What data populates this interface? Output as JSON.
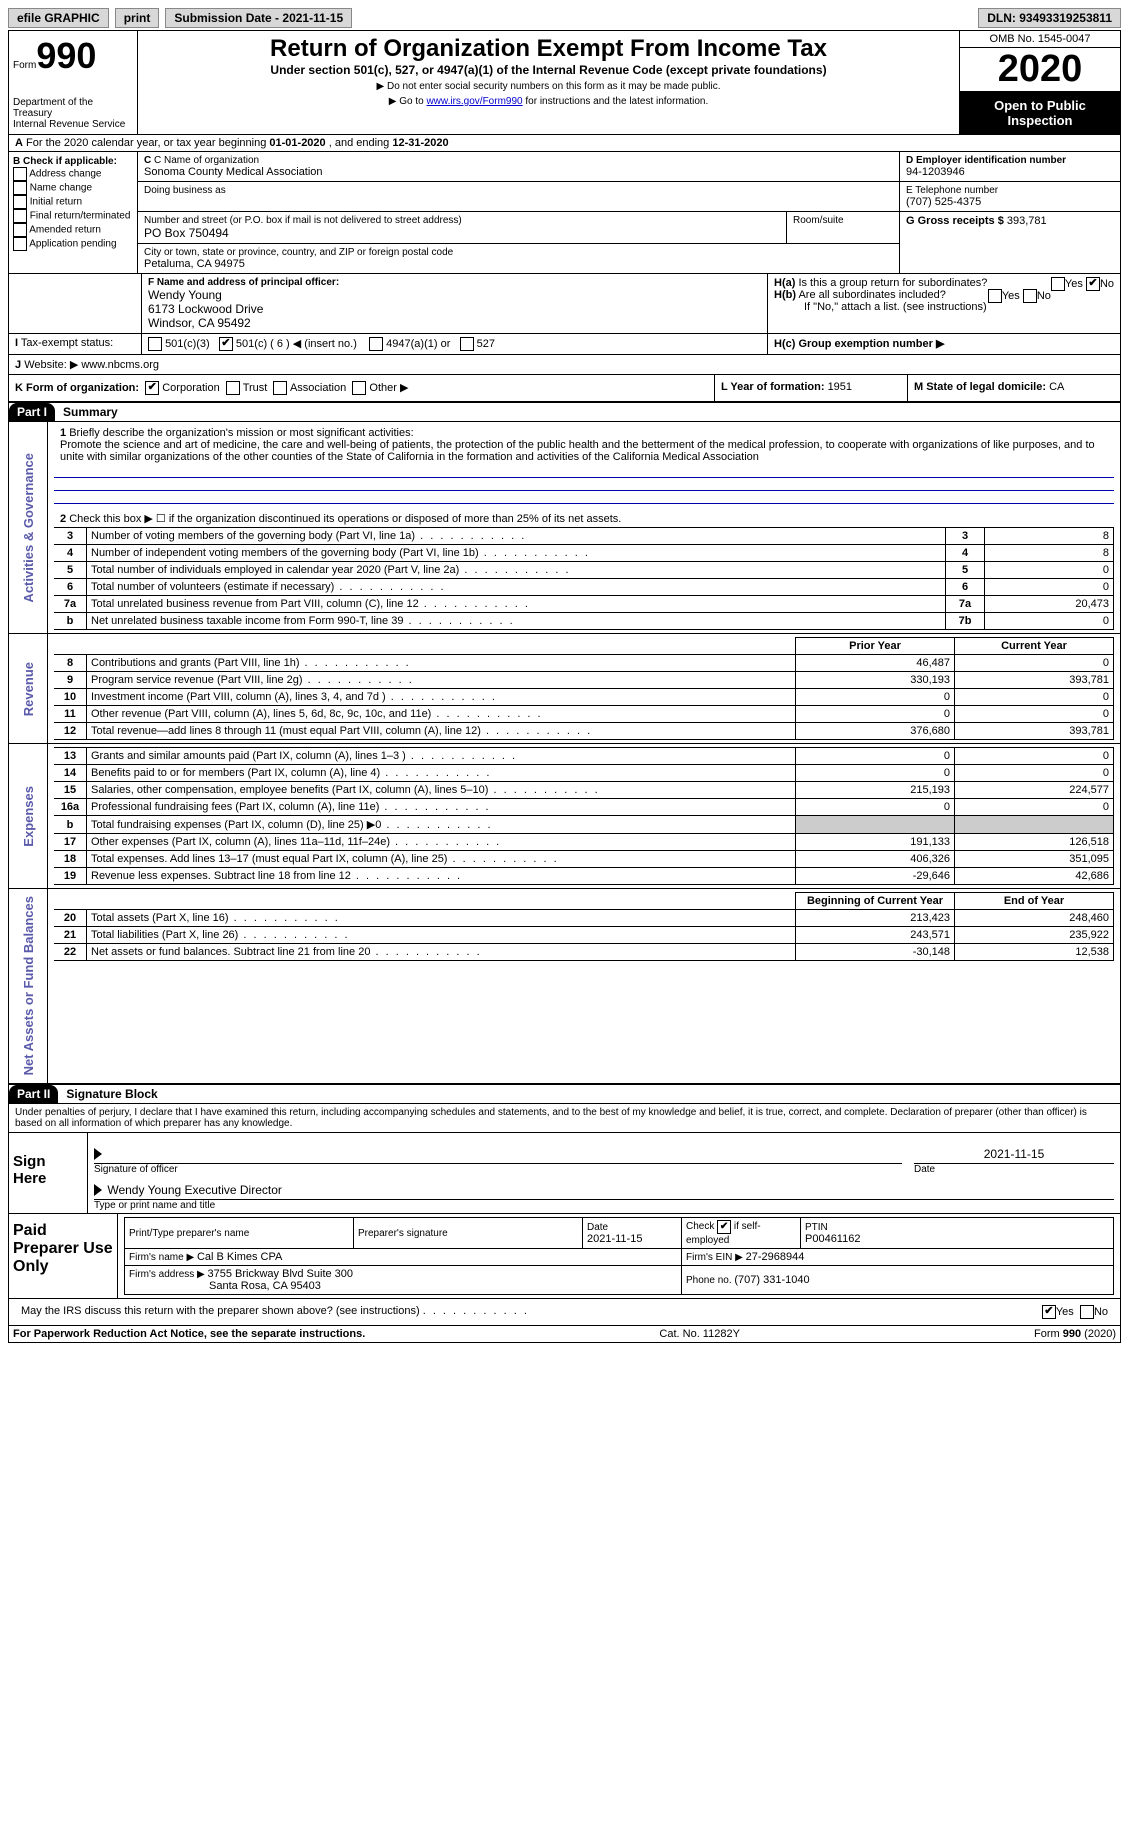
{
  "topbar": {
    "efile": "efile GRAPHIC",
    "print": "print",
    "subdate_label": "Submission Date - ",
    "subdate": "2021-11-15",
    "dln_label": "DLN: ",
    "dln": "93493319253811"
  },
  "header": {
    "form_label": "Form",
    "form_no": "990",
    "dept1": "Department of the Treasury",
    "dept2": "Internal Revenue Service",
    "title": "Return of Organization Exempt From Income Tax",
    "subtitle": "Under section 501(c), 527, or 4947(a)(1) of the Internal Revenue Code (except private foundations)",
    "note1": "Do not enter social security numbers on this form as it may be made public.",
    "note2_pre": "Go to ",
    "note2_link": "www.irs.gov/Form990",
    "note2_post": " for instructions and the latest information.",
    "omb": "OMB No. 1545-0047",
    "year": "2020",
    "open": "Open to Public Inspection"
  },
  "periodA": {
    "text_pre": "For the 2020 calendar year, or tax year beginning ",
    "begin": "01-01-2020",
    "mid": " , and ending ",
    "end": "12-31-2020"
  },
  "boxB": {
    "title": "B Check if applicable:",
    "opts": [
      "Address change",
      "Name change",
      "Initial return",
      "Final return/terminated",
      "Amended return",
      "Application pending"
    ]
  },
  "boxC": {
    "name_label": "C Name of organization",
    "name": "Sonoma County Medical Association",
    "dba_label": "Doing business as",
    "addr_label": "Number and street (or P.O. box if mail is not delivered to street address)",
    "room_label": "Room/suite",
    "addr": "PO Box 750494",
    "city_label": "City or town, state or province, country, and ZIP or foreign postal code",
    "city": "Petaluma, CA  94975"
  },
  "boxD": {
    "label": "D Employer identification number",
    "ein": "94-1203946"
  },
  "boxE": {
    "label": "E Telephone number",
    "phone": "(707) 525-4375"
  },
  "boxG": {
    "label": "G Gross receipts $ ",
    "val": "393,781"
  },
  "boxF": {
    "label": "F  Name and address of principal officer:",
    "name": "Wendy Young",
    "addr1": "6173 Lockwood Drive",
    "addr2": "Windsor, CA  95492"
  },
  "boxH": {
    "a_label": "H(a)  Is this a group return for subordinates?",
    "b_label": "H(b)  Are all subordinates included?",
    "b_note": "If \"No,\" attach a list. (see instructions)",
    "c_label": "H(c)  Group exemption number ▶",
    "yes": "Yes",
    "no": "No"
  },
  "boxI": {
    "label": "Tax-exempt status:",
    "o1": "501(c)(3)",
    "o2": "501(c) ( 6 ) ◀ (insert no.)",
    "o3": "4947(a)(1) or",
    "o4": "527"
  },
  "boxJ": {
    "label": "Website: ▶ ",
    "val": "www.nbcms.org"
  },
  "boxK": {
    "label": "K Form of organization:",
    "o1": "Corporation",
    "o2": "Trust",
    "o3": "Association",
    "o4": "Other ▶"
  },
  "boxL": {
    "label": "L Year of formation: ",
    "val": "1951"
  },
  "boxM": {
    "label": "M State of legal domicile: ",
    "val": "CA"
  },
  "part1": {
    "part": "Part I",
    "title": "Summary",
    "line1_label": "Briefly describe the organization's mission or most significant activities:",
    "mission": "Promote the science and art of medicine, the care and well-being of patients, the protection of the public health and the betterment of the medical profession, to cooperate with organizations of like purposes, and to unite with similar organizations of the other counties of the State of California in the formation and activities of the California Medical Association",
    "line2": "Check this box ▶ ☐ if the organization discontinued its operations or disposed of more than 25% of its net assets.",
    "side_ag": "Activities & Governance",
    "side_rev": "Revenue",
    "side_exp": "Expenses",
    "side_net": "Net Assets or Fund Balances",
    "prior_hdr": "Prior Year",
    "current_hdr": "Current Year",
    "boy_hdr": "Beginning of Current Year",
    "eoy_hdr": "End of Year",
    "ag_rows": [
      {
        "n": "3",
        "label": "Number of voting members of the governing body (Part VI, line 1a)",
        "box": "3",
        "val": "8"
      },
      {
        "n": "4",
        "label": "Number of independent voting members of the governing body (Part VI, line 1b)",
        "box": "4",
        "val": "8"
      },
      {
        "n": "5",
        "label": "Total number of individuals employed in calendar year 2020 (Part V, line 2a)",
        "box": "5",
        "val": "0"
      },
      {
        "n": "6",
        "label": "Total number of volunteers (estimate if necessary)",
        "box": "6",
        "val": "0"
      },
      {
        "n": "7a",
        "label": "Total unrelated business revenue from Part VIII, column (C), line 12",
        "box": "7a",
        "val": "20,473"
      },
      {
        "n": "b",
        "label": "Net unrelated business taxable income from Form 990-T, line 39",
        "box": "7b",
        "val": "0"
      }
    ],
    "rev_rows": [
      {
        "n": "8",
        "label": "Contributions and grants (Part VIII, line 1h)",
        "prior": "46,487",
        "cur": "0"
      },
      {
        "n": "9",
        "label": "Program service revenue (Part VIII, line 2g)",
        "prior": "330,193",
        "cur": "393,781"
      },
      {
        "n": "10",
        "label": "Investment income (Part VIII, column (A), lines 3, 4, and 7d )",
        "prior": "0",
        "cur": "0"
      },
      {
        "n": "11",
        "label": "Other revenue (Part VIII, column (A), lines 5, 6d, 8c, 9c, 10c, and 11e)",
        "prior": "0",
        "cur": "0"
      },
      {
        "n": "12",
        "label": "Total revenue—add lines 8 through 11 (must equal Part VIII, column (A), line 12)",
        "prior": "376,680",
        "cur": "393,781"
      }
    ],
    "exp_rows": [
      {
        "n": "13",
        "label": "Grants and similar amounts paid (Part IX, column (A), lines 1–3 )",
        "prior": "0",
        "cur": "0"
      },
      {
        "n": "14",
        "label": "Benefits paid to or for members (Part IX, column (A), line 4)",
        "prior": "0",
        "cur": "0"
      },
      {
        "n": "15",
        "label": "Salaries, other compensation, employee benefits (Part IX, column (A), lines 5–10)",
        "prior": "215,193",
        "cur": "224,577"
      },
      {
        "n": "16a",
        "label": "Professional fundraising fees (Part IX, column (A), line 11e)",
        "prior": "0",
        "cur": "0"
      },
      {
        "n": "b",
        "label": "Total fundraising expenses (Part IX, column (D), line 25) ▶0",
        "prior": "",
        "cur": ""
      },
      {
        "n": "17",
        "label": "Other expenses (Part IX, column (A), lines 11a–11d, 11f–24e)",
        "prior": "191,133",
        "cur": "126,518"
      },
      {
        "n": "18",
        "label": "Total expenses. Add lines 13–17 (must equal Part IX, column (A), line 25)",
        "prior": "406,326",
        "cur": "351,095"
      },
      {
        "n": "19",
        "label": "Revenue less expenses. Subtract line 18 from line 12",
        "prior": "-29,646",
        "cur": "42,686"
      }
    ],
    "net_rows": [
      {
        "n": "20",
        "label": "Total assets (Part X, line 16)",
        "prior": "213,423",
        "cur": "248,460"
      },
      {
        "n": "21",
        "label": "Total liabilities (Part X, line 26)",
        "prior": "243,571",
        "cur": "235,922"
      },
      {
        "n": "22",
        "label": "Net assets or fund balances. Subtract line 21 from line 20",
        "prior": "-30,148",
        "cur": "12,538"
      }
    ]
  },
  "part2": {
    "part": "Part II",
    "title": "Signature Block",
    "perjury": "Under penalties of perjury, I declare that I have examined this return, including accompanying schedules and statements, and to the best of my knowledge and belief, it is true, correct, and complete. Declaration of preparer (other than officer) is based on all information of which preparer has any knowledge.",
    "sign_here": "Sign Here",
    "sig_officer": "Signature of officer",
    "sig_date": "2021-11-15",
    "date_label": "Date",
    "officer_name": "Wendy Young  Executive Director",
    "type_label": "Type or print name and title",
    "paid": "Paid Preparer Use Only",
    "prep_name_label": "Print/Type preparer's name",
    "prep_sig_label": "Preparer's signature",
    "prep_date_label": "Date",
    "prep_date": "2021-11-15",
    "self_emp_label": "Check ☑ if self-employed",
    "ptin_label": "PTIN",
    "ptin": "P00461162",
    "firm_name_label": "Firm's name   ▶ ",
    "firm_name": "Cal B Kimes CPA",
    "firm_ein_label": "Firm's EIN ▶ ",
    "firm_ein": "27-2968944",
    "firm_addr_label": "Firm's address ▶ ",
    "firm_addr1": "3755 Brickway Blvd Suite 300",
    "firm_addr2": "Santa Rosa, CA  95403",
    "firm_phone_label": "Phone no. ",
    "firm_phone": "(707) 331-1040",
    "may_irs": "May the IRS discuss this return with the preparer shown above? (see instructions)",
    "yes": "Yes",
    "no": "No"
  },
  "footer": {
    "pra": "For Paperwork Reduction Act Notice, see the separate instructions.",
    "cat": "Cat. No. 11282Y",
    "form": "Form 990 (2020)"
  }
}
